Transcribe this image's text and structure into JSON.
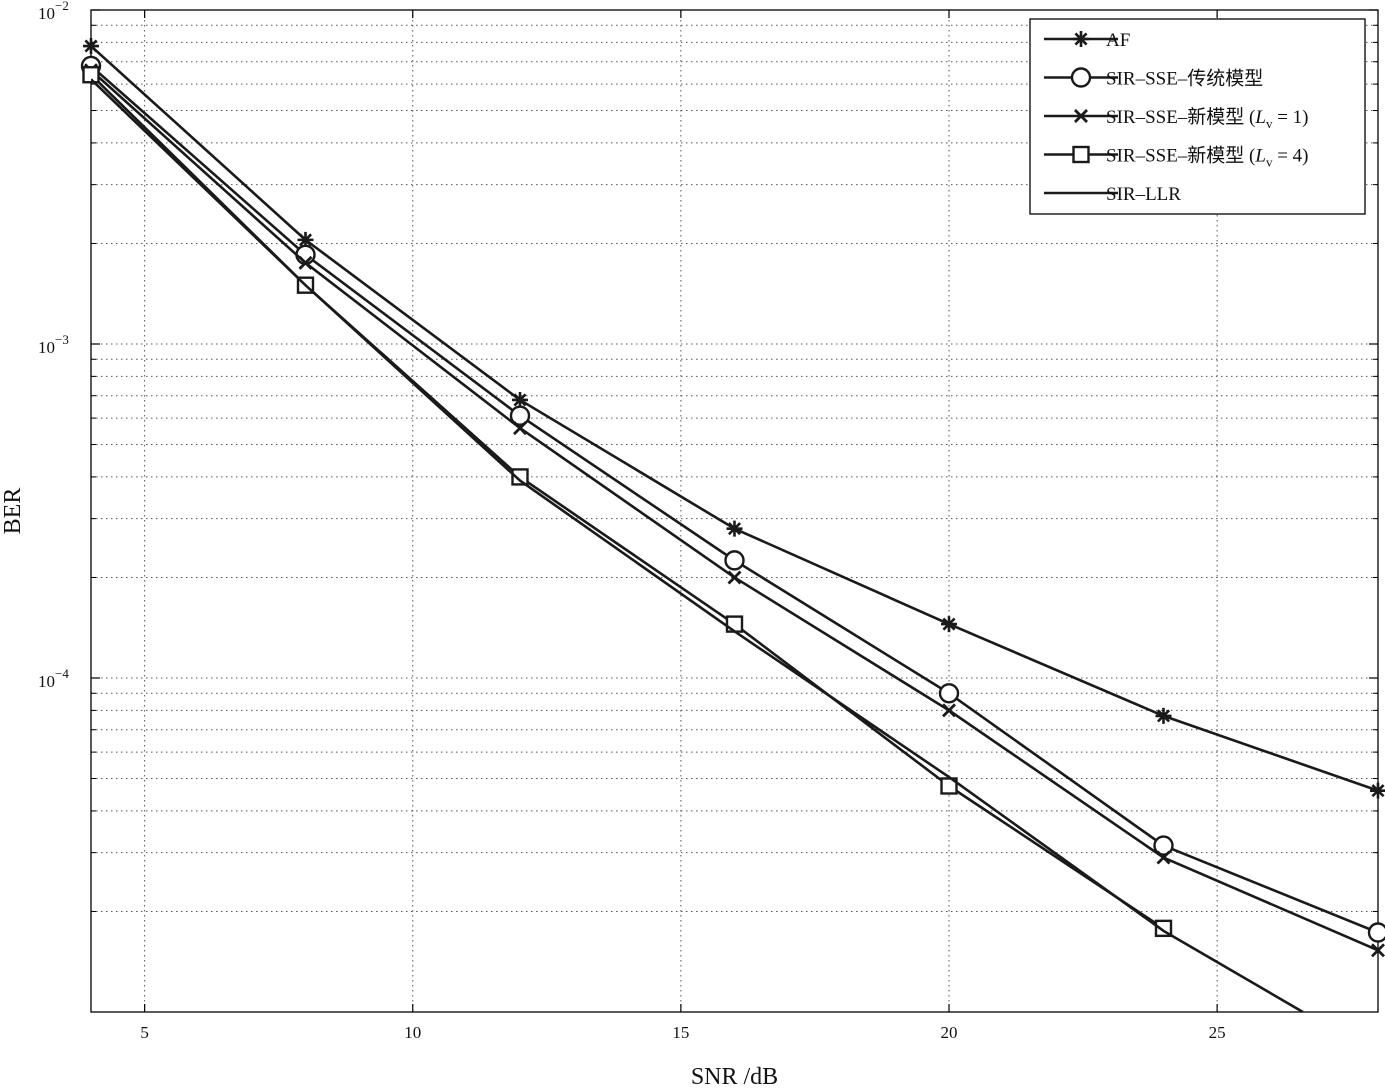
{
  "chart_data": {
    "type": "line",
    "title": "",
    "xlabel": "SNR /dB",
    "ylabel": "BER",
    "xlim": [
      4,
      28
    ],
    "ylim": [
      1e-05,
      0.01
    ],
    "yscale": "log",
    "grid": true,
    "legend_position": "top-right",
    "x_ticks": [
      5,
      10,
      15,
      20,
      25
    ],
    "x_tick_labels": [
      "5",
      "10",
      "15",
      "20",
      "25"
    ],
    "y_ticks": [
      0.01,
      0.001,
      0.0001
    ],
    "y_tick_labels": [
      {
        "base": "10",
        "exp": "−2"
      },
      {
        "base": "10",
        "exp": "−3"
      },
      {
        "base": "10",
        "exp": "−4"
      }
    ],
    "series": [
      {
        "name": "AF",
        "marker": "asterisk",
        "x": [
          4,
          8,
          12,
          16,
          20,
          24,
          28
        ],
        "y": [
          0.0078,
          0.00205,
          0.00068,
          0.00028,
          0.000145,
          7.7e-05,
          4.6e-05
        ]
      },
      {
        "name": "SIR–SSE–传统模型",
        "marker": "circle",
        "x": [
          4,
          8,
          12,
          16,
          20,
          24,
          28
        ],
        "y": [
          0.0068,
          0.00185,
          0.00061,
          0.000225,
          9e-05,
          3.15e-05,
          1.73e-05
        ]
      },
      {
        "name": "SIR–SSE–新模型 (Lv = 1)",
        "legend": {
          "prefix": "SIR–SSE–新模型 (",
          "var": "L",
          "sub": "v",
          "suffix": " = 1)"
        },
        "marker": "x",
        "x": [
          4,
          8,
          12,
          16,
          20,
          24,
          28
        ],
        "y": [
          0.0066,
          0.00175,
          0.00056,
          0.0002,
          8e-05,
          2.9e-05,
          1.53e-05
        ]
      },
      {
        "name": "SIR–SSE–新模型 (Lv = 4)",
        "legend": {
          "prefix": "SIR–SSE–新模型 (",
          "var": "L",
          "sub": "v",
          "suffix": " = 4)"
        },
        "marker": "square",
        "x": [
          4,
          8,
          12,
          16,
          20,
          24
        ],
        "y": [
          0.0064,
          0.0015,
          0.0004,
          0.000145,
          4.75e-05,
          1.78e-05
        ]
      },
      {
        "name": "SIR–LLR",
        "marker": "none",
        "x": [
          4,
          8,
          12,
          16,
          20,
          24,
          26.6
        ],
        "y": [
          0.0062,
          0.0015,
          0.00039,
          0.000138,
          5.05e-05,
          1.75e-05,
          1e-05
        ]
      }
    ]
  }
}
